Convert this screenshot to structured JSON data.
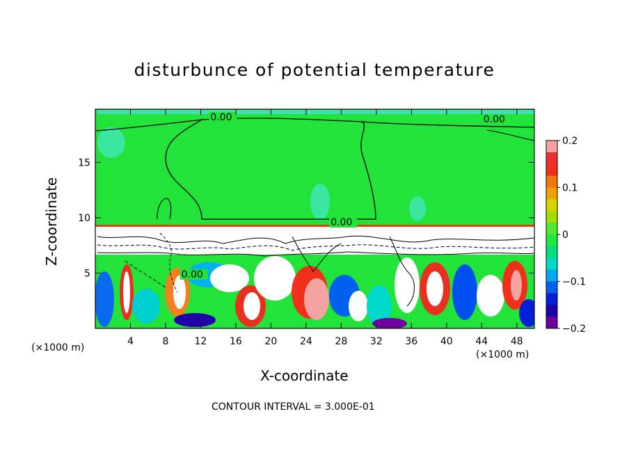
{
  "chart_data": {
    "type": "heatmap",
    "title": "disturbunce of potential temperature",
    "xlabel": "X-coordinate",
    "ylabel": "Z-coordinate",
    "x_unit": "(×1000 m)",
    "y_unit": "(×1000 m)",
    "xlim": [
      0,
      50
    ],
    "ylim": [
      0,
      19.8
    ],
    "x_ticks": [
      4,
      8,
      12,
      16,
      20,
      24,
      28,
      32,
      36,
      40,
      44,
      48
    ],
    "y_ticks": [
      5,
      10,
      15
    ],
    "colorbar": {
      "range": [
        -0.2,
        0.2
      ],
      "tick_values": [
        0.2,
        0.1,
        0,
        -0.1,
        -0.2
      ],
      "tick_labels": [
        "0.2",
        "0.1",
        "0",
        "−0.1",
        "−0.2"
      ],
      "colors": [
        "#f4a3a3",
        "#e8302c",
        "#f03018",
        "#f07810",
        "#f0a000",
        "#d4d400",
        "#a0e000",
        "#50e830",
        "#20e840",
        "#00e080",
        "#00d8c8",
        "#00a8f0",
        "#0060f0",
        "#0020d8",
        "#2000a8",
        "#7000a0"
      ]
    },
    "contour_labels": [
      {
        "text": "0.00",
        "x": 13.1,
        "z": 18.8
      },
      {
        "text": "0.00",
        "x": 44.2,
        "z": 18.6
      },
      {
        "text": "0.00",
        "x": 26.8,
        "z": 9.3
      },
      {
        "text": "0.00",
        "x": 9.8,
        "z": 4.6
      }
    ],
    "contour_interval_text": "CONTOUR INTERVAL = 3.000E-01"
  }
}
